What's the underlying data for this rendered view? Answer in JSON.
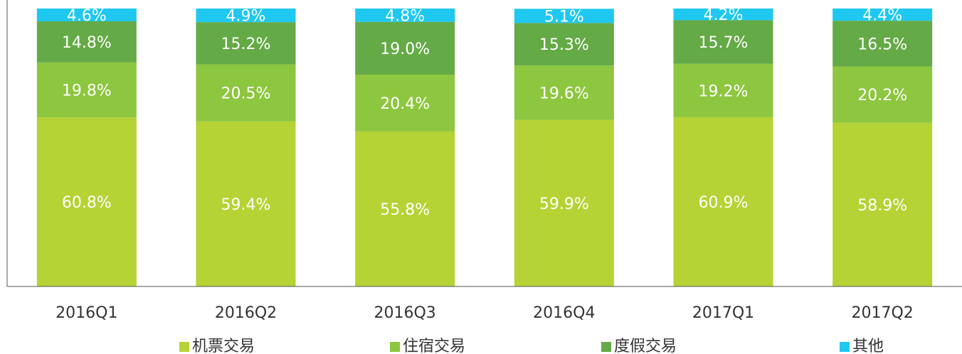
{
  "chart_data": {
    "type": "stacked_bar",
    "categories": [
      "2016Q1",
      "2016Q2",
      "2016Q3",
      "2016Q4",
      "2017Q1",
      "2017Q2"
    ],
    "series": [
      {
        "name": "机票交易",
        "color": "#b5d334",
        "values": [
          60.8,
          59.4,
          55.8,
          59.9,
          60.9,
          58.9
        ],
        "value_labels": [
          "60.8%",
          "59.4%",
          "55.8%",
          "59.9%",
          "60.9%",
          "58.9%"
        ]
      },
      {
        "name": "住宿交易",
        "color": "#8dc63f",
        "values": [
          19.8,
          20.5,
          20.4,
          19.6,
          19.2,
          20.2
        ],
        "value_labels": [
          "19.8%",
          "20.5%",
          "20.4%",
          "19.6%",
          "19.2%",
          "20.2%"
        ]
      },
      {
        "name": "度假交易",
        "color": "#64aa46",
        "values": [
          14.8,
          15.2,
          19.0,
          15.3,
          15.7,
          16.5
        ],
        "value_labels": [
          "14.8%",
          "15.2%",
          "19.0%",
          "15.3%",
          "15.7%",
          "16.5%"
        ]
      },
      {
        "name": "其他",
        "color": "#1ec8f0",
        "values": [
          4.6,
          4.9,
          4.8,
          5.1,
          4.2,
          4.4
        ],
        "value_labels": [
          "4.6%",
          "4.9%",
          "4.8%",
          "5.1%",
          "4.2%",
          "4.4%"
        ]
      }
    ],
    "ylim": [
      0,
      100
    ]
  }
}
